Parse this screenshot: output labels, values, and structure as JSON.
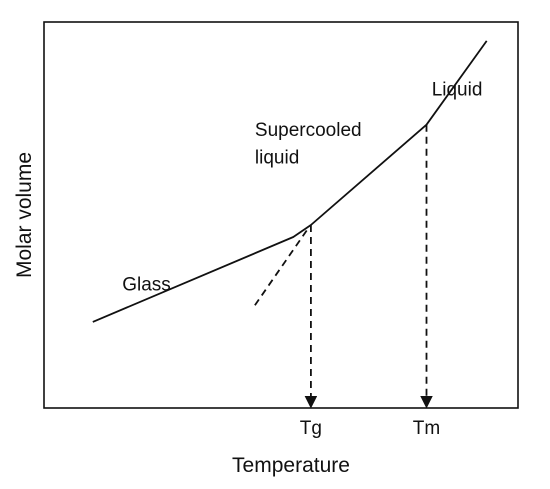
{
  "chart_data": {
    "type": "line",
    "title": "",
    "xlabel": "Temperature",
    "ylabel": "Molar volume",
    "xlim": [
      0,
      100
    ],
    "ylim": [
      0,
      100
    ],
    "grid": false,
    "legend": "none",
    "axis_ticks": false,
    "series": [
      {
        "name": "",
        "style": "solid",
        "points": [
          [
            10.3,
            22.3
          ],
          [
            52.6,
            44.3
          ],
          [
            56.3,
            47.4
          ],
          [
            80.7,
            73.4
          ],
          [
            93.4,
            95.1
          ]
        ]
      },
      {
        "name": "",
        "style": "dashed",
        "points": [
          [
            44.5,
            26.6
          ],
          [
            55.6,
            46.3
          ]
        ]
      }
    ],
    "annotations": [
      {
        "text": "Glass",
        "x": 16.5,
        "y": 30.4
      },
      {
        "text": "Supercooled",
        "x": 44.5,
        "y": 70.5
      },
      {
        "text": "liquid",
        "x": 44.5,
        "y": 63.4
      },
      {
        "text": "Liquid",
        "x": 81.8,
        "y": 81.0
      }
    ],
    "markers": [
      {
        "label": "Tg",
        "x": 56.3,
        "y_from": 47.4,
        "style": "dashed-arrow-down"
      },
      {
        "label": "Tm",
        "x": 80.7,
        "y_from": 73.4,
        "style": "dashed-arrow-down"
      }
    ]
  }
}
